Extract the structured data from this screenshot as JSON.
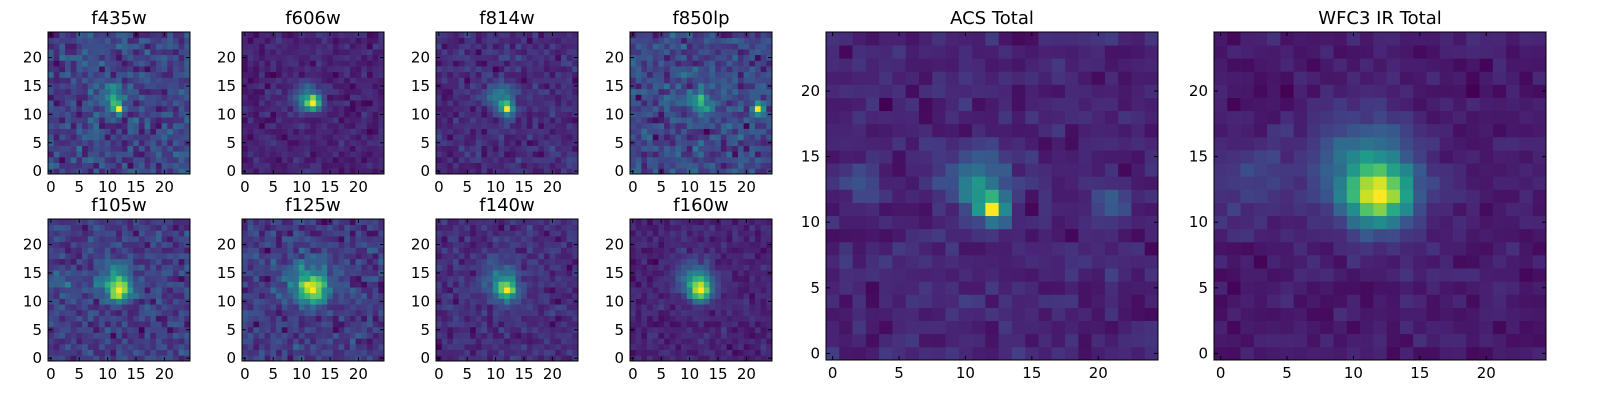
{
  "figure": {
    "colormap": "viridis",
    "grid": false
  },
  "chart_data": [
    {
      "type": "heatmap",
      "title": "f435w",
      "grid_size": 25,
      "xlim": [
        0,
        24
      ],
      "ylim": [
        0,
        24
      ],
      "xticks": [
        0,
        5,
        10,
        15,
        20
      ],
      "yticks": [
        0,
        5,
        10,
        15,
        20
      ],
      "noise": 0.22,
      "sources": [
        {
          "x": 12,
          "y": 11,
          "amp": 1.0,
          "sigma": 0.7
        },
        {
          "x": 11,
          "y": 13,
          "amp": 0.45,
          "sigma": 1.4
        }
      ]
    },
    {
      "type": "heatmap",
      "title": "f606w",
      "grid_size": 25,
      "xlim": [
        0,
        24
      ],
      "ylim": [
        0,
        24
      ],
      "xticks": [
        0,
        5,
        10,
        15,
        20
      ],
      "yticks": [
        0,
        5,
        10,
        15,
        20
      ],
      "noise": 0.12,
      "sources": [
        {
          "x": 12,
          "y": 12,
          "amp": 1.0,
          "sigma": 0.9
        },
        {
          "x": 11,
          "y": 13,
          "amp": 0.55,
          "sigma": 1.7
        }
      ]
    },
    {
      "type": "heatmap",
      "title": "f814w",
      "grid_size": 25,
      "xlim": [
        0,
        24
      ],
      "ylim": [
        0,
        24
      ],
      "xticks": [
        0,
        5,
        10,
        15,
        20
      ],
      "yticks": [
        0,
        5,
        10,
        15,
        20
      ],
      "noise": 0.14,
      "sources": [
        {
          "x": 12,
          "y": 11,
          "amp": 1.0,
          "sigma": 0.8
        },
        {
          "x": 11,
          "y": 13,
          "amp": 0.5,
          "sigma": 1.6
        }
      ]
    },
    {
      "type": "heatmap",
      "title": "f850lp",
      "grid_size": 25,
      "xlim": [
        0,
        24
      ],
      "ylim": [
        0,
        24
      ],
      "xticks": [
        0,
        5,
        10,
        15,
        20
      ],
      "yticks": [
        0,
        5,
        10,
        15,
        20
      ],
      "noise": 0.18,
      "sources": [
        {
          "x": 22,
          "y": 11,
          "amp": 1.0,
          "sigma": 0.6
        },
        {
          "x": 12,
          "y": 12,
          "amp": 0.45,
          "sigma": 1.4
        }
      ]
    },
    {
      "type": "heatmap",
      "title": "ACS Total",
      "grid_size": 25,
      "xlim": [
        0,
        24
      ],
      "ylim": [
        0,
        24
      ],
      "xticks": [
        0,
        5,
        10,
        15,
        20
      ],
      "yticks": [
        0,
        5,
        10,
        15,
        20
      ],
      "noise": 0.1,
      "sources": [
        {
          "x": 12,
          "y": 11,
          "amp": 1.0,
          "sigma": 0.7
        },
        {
          "x": 11,
          "y": 13,
          "amp": 0.55,
          "sigma": 1.5
        },
        {
          "x": 21,
          "y": 11.5,
          "amp": 0.3,
          "sigma": 0.9
        },
        {
          "x": 2,
          "y": 13,
          "amp": 0.2,
          "sigma": 1.0
        }
      ]
    },
    {
      "type": "heatmap",
      "title": "f105w",
      "grid_size": 25,
      "xlim": [
        0,
        24
      ],
      "ylim": [
        0,
        24
      ],
      "xticks": [
        0,
        5,
        10,
        15,
        20
      ],
      "yticks": [
        0,
        5,
        10,
        15,
        20
      ],
      "noise": 0.18,
      "sources": [
        {
          "x": 12,
          "y": 12,
          "amp": 1.0,
          "sigma": 1.3
        },
        {
          "x": 11,
          "y": 14,
          "amp": 0.4,
          "sigma": 2.5
        },
        {
          "x": 2,
          "y": 13,
          "amp": 0.2,
          "sigma": 1.8
        }
      ]
    },
    {
      "type": "heatmap",
      "title": "f125w",
      "grid_size": 25,
      "xlim": [
        0,
        24
      ],
      "ylim": [
        0,
        24
      ],
      "xticks": [
        0,
        5,
        10,
        15,
        20
      ],
      "yticks": [
        0,
        5,
        10,
        15,
        20
      ],
      "noise": 0.2,
      "sources": [
        {
          "x": 12,
          "y": 12,
          "amp": 1.0,
          "sigma": 1.5
        },
        {
          "x": 11,
          "y": 14,
          "amp": 0.45,
          "sigma": 2.8
        }
      ]
    },
    {
      "type": "heatmap",
      "title": "f140w",
      "grid_size": 25,
      "xlim": [
        0,
        24
      ],
      "ylim": [
        0,
        24
      ],
      "xticks": [
        0,
        5,
        10,
        15,
        20
      ],
      "yticks": [
        0,
        5,
        10,
        15,
        20
      ],
      "noise": 0.14,
      "sources": [
        {
          "x": 12,
          "y": 12,
          "amp": 1.0,
          "sigma": 1.2
        },
        {
          "x": 11,
          "y": 14,
          "amp": 0.4,
          "sigma": 2.4
        }
      ]
    },
    {
      "type": "heatmap",
      "title": "f160w",
      "grid_size": 25,
      "xlim": [
        0,
        24
      ],
      "ylim": [
        0,
        24
      ],
      "xticks": [
        0,
        5,
        10,
        15,
        20
      ],
      "yticks": [
        0,
        5,
        10,
        15,
        20
      ],
      "noise": 0.1,
      "sources": [
        {
          "x": 12,
          "y": 12,
          "amp": 1.0,
          "sigma": 1.3
        },
        {
          "x": 11,
          "y": 14,
          "amp": 0.5,
          "sigma": 2.2
        }
      ]
    },
    {
      "type": "heatmap",
      "title": "WFC3 IR Total",
      "grid_size": 25,
      "xlim": [
        0,
        24
      ],
      "ylim": [
        0,
        24
      ],
      "xticks": [
        0,
        5,
        10,
        15,
        20
      ],
      "yticks": [
        0,
        5,
        10,
        15,
        20
      ],
      "noise": 0.08,
      "sources": [
        {
          "x": 12,
          "y": 12,
          "amp": 1.0,
          "sigma": 1.6
        },
        {
          "x": 11,
          "y": 14,
          "amp": 0.55,
          "sigma": 2.8
        },
        {
          "x": 2,
          "y": 13,
          "amp": 0.2,
          "sigma": 2.0
        }
      ]
    }
  ]
}
